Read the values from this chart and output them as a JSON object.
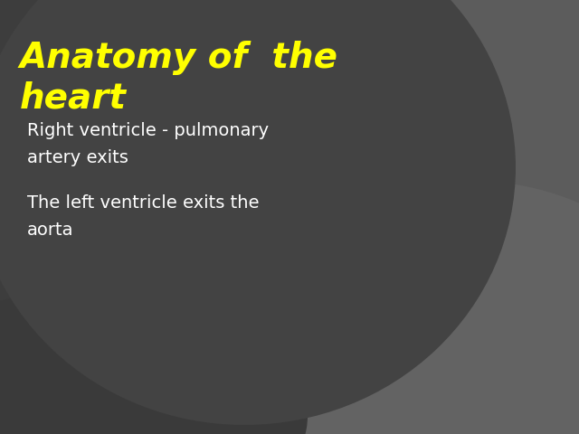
{
  "title_line1": "Anatomy of  the",
  "title_line2": "heart",
  "title_color": "#ffff00",
  "title_fontsize": 28,
  "title_fontweight": "bold",
  "title_fontstyle": "italic",
  "body_line1": "Right ventricle - pulmonary",
  "body_line2": "artery exits",
  "body_line4": "The left ventricle exits the",
  "body_line5": "aorta",
  "body_color": "#ffffff",
  "body_fontsize": 14,
  "bg_base": "#3d3d3d",
  "bg_main_circle": "#474747",
  "bg_right_strip": "#555555",
  "bg_bottom_arc": "#606060",
  "bg_bottom_right": "#595959"
}
